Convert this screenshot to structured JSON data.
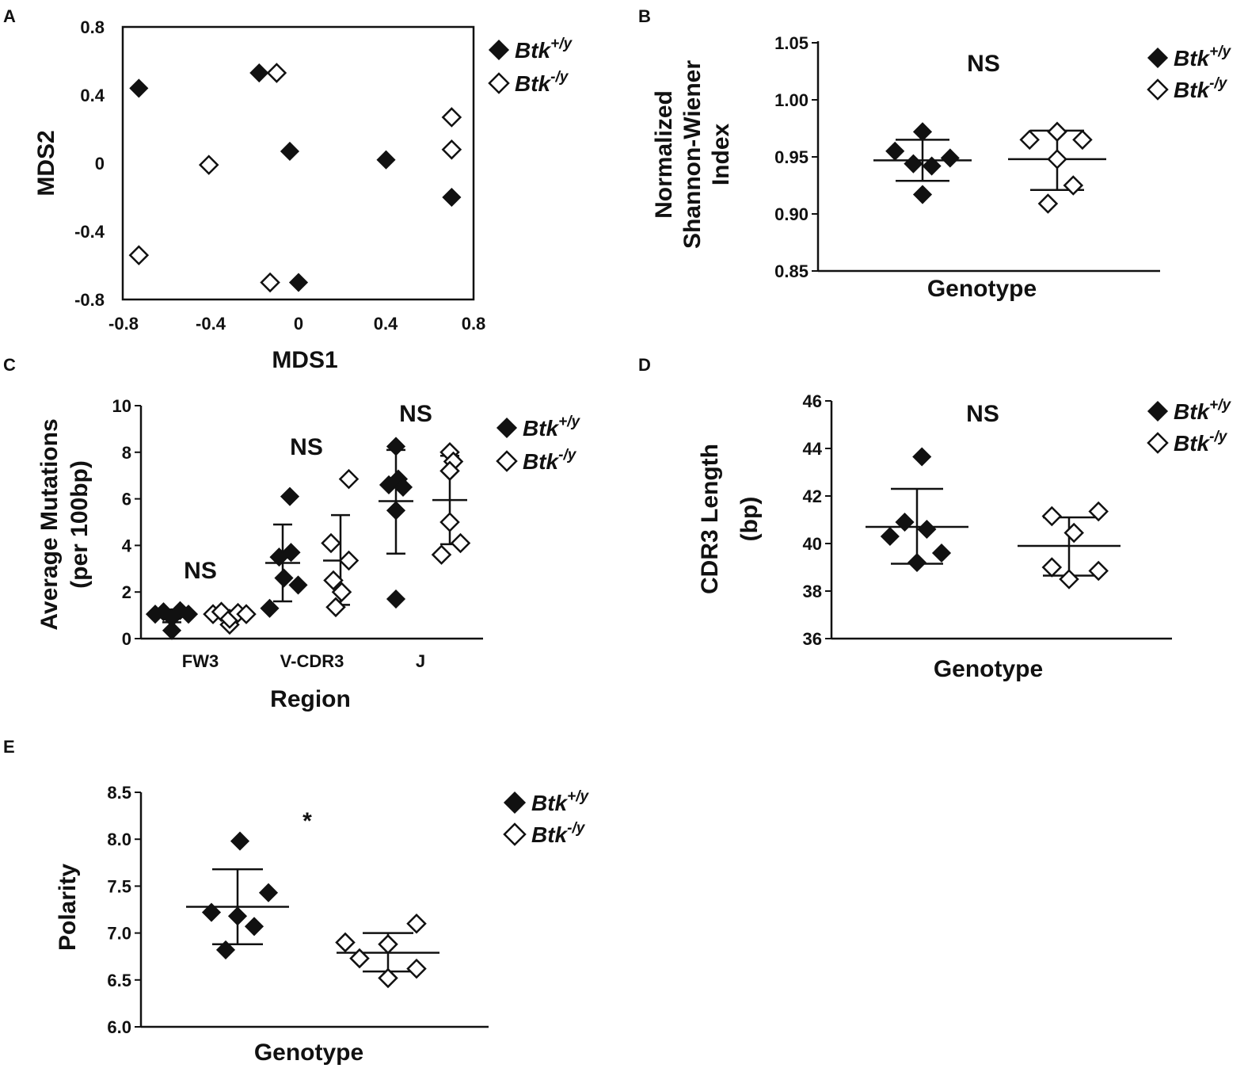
{
  "chart_data": [
    {
      "panel": "A",
      "type": "scatter",
      "xlabel": "MDS1",
      "ylabel": "MDS2",
      "xlim": [
        -0.8,
        0.8
      ],
      "ylim": [
        -0.8,
        0.8
      ],
      "xticks": [
        "-0.8",
        "-0.4",
        "0",
        "0.4",
        "0.8"
      ],
      "yticks": [
        "-0.8",
        "-0.4",
        "0",
        "0.4",
        "0.8"
      ],
      "legend": [
        "Btk+/y",
        "Btk-/y"
      ],
      "series": [
        {
          "name": "Btk+/y",
          "marker": "filled-diamond",
          "points": [
            [
              -0.73,
              0.44
            ],
            [
              -0.18,
              0.53
            ],
            [
              -0.04,
              0.07
            ],
            [
              0.4,
              0.02
            ],
            [
              0.7,
              -0.2
            ],
            [
              0.0,
              -0.7
            ]
          ]
        },
        {
          "name": "Btk-/y",
          "marker": "open-diamond",
          "points": [
            [
              -0.1,
              0.53
            ],
            [
              0.7,
              0.27
            ],
            [
              0.7,
              0.08
            ],
            [
              -0.41,
              -0.01
            ],
            [
              -0.73,
              -0.54
            ],
            [
              -0.13,
              -0.7
            ]
          ]
        }
      ]
    },
    {
      "panel": "B",
      "type": "scatter",
      "significance": "NS",
      "xlabel": "Genotype",
      "ylabel_lines": [
        "Normalized",
        "Shannon-Wiener",
        "Index"
      ],
      "ylim": [
        0.85,
        1.05
      ],
      "yticks": [
        "0.85",
        "0.90",
        "0.95",
        "1.00",
        "1.05"
      ],
      "legend": [
        "Btk+/y",
        "Btk-/y"
      ],
      "series": [
        {
          "name": "Btk+/y",
          "marker": "filled-diamond",
          "mean": 0.947,
          "err_low": 0.929,
          "err_high": 0.965,
          "points": [
            0.955,
            0.972,
            0.944,
            0.942,
            0.949,
            0.917
          ],
          "jitter": [
            -0.6,
            0.0,
            -0.2,
            0.2,
            0.6,
            0.0
          ]
        },
        {
          "name": "Btk-/y",
          "marker": "open-diamond",
          "mean": 0.948,
          "err_low": 0.921,
          "err_high": 0.973,
          "points": [
            0.965,
            0.972,
            0.965,
            0.948,
            0.925,
            0.909
          ],
          "jitter": [
            -0.6,
            0.0,
            0.55,
            0.0,
            0.35,
            -0.2
          ]
        }
      ]
    },
    {
      "panel": "C",
      "type": "scatter",
      "xlabel": "Region",
      "ylabel_lines": [
        "Average Mutations",
        "(per 100bp)"
      ],
      "ylim": [
        0,
        10
      ],
      "yticks": [
        "0",
        "2",
        "4",
        "6",
        "8",
        "10"
      ],
      "categories": [
        "FW3",
        "V-CDR3",
        "J"
      ],
      "significance": [
        "NS",
        "NS",
        "NS"
      ],
      "legend": [
        "Btk+/y",
        "Btk-/y"
      ],
      "groups": [
        {
          "category": "FW3",
          "series": "Btk+/y",
          "marker": "filled-diamond",
          "mean": 1.0,
          "err_low": 0.7,
          "err_high": 1.25,
          "points": [
            1.05,
            1.15,
            0.35,
            0.9,
            1.2,
            1.05
          ],
          "jitter": [
            -0.7,
            -0.35,
            0.0,
            0.0,
            0.35,
            0.7
          ]
        },
        {
          "category": "FW3",
          "series": "Btk-/y",
          "marker": "open-diamond",
          "mean": 1.0,
          "err_low": 0.8,
          "err_high": 1.2,
          "points": [
            1.05,
            1.15,
            0.6,
            0.85,
            1.1,
            1.05
          ],
          "jitter": [
            -0.7,
            -0.35,
            0.0,
            0.0,
            0.35,
            0.7
          ]
        },
        {
          "category": "V-CDR3",
          "series": "Btk+/y",
          "marker": "filled-diamond",
          "mean": 3.25,
          "err_low": 1.6,
          "err_high": 4.9,
          "points": [
            6.1,
            3.5,
            3.7,
            2.6,
            2.3,
            1.3
          ],
          "jitter": [
            0.3,
            -0.15,
            0.35,
            0.05,
            0.65,
            -0.55
          ]
        },
        {
          "category": "V-CDR3",
          "series": "Btk-/y",
          "marker": "open-diamond",
          "mean": 3.35,
          "err_low": 1.45,
          "err_high": 5.3,
          "points": [
            6.85,
            4.1,
            3.35,
            2.5,
            2.0,
            1.35
          ],
          "jitter": [
            0.35,
            -0.4,
            0.35,
            -0.3,
            0.05,
            -0.2
          ]
        },
        {
          "category": "J",
          "series": "Btk+/y",
          "marker": "filled-diamond",
          "mean": 5.9,
          "err_low": 3.65,
          "err_high": 8.1,
          "points": [
            8.25,
            6.85,
            6.6,
            6.5,
            5.5,
            1.7
          ],
          "jitter": [
            0.0,
            0.1,
            -0.3,
            0.3,
            0.0,
            0.0
          ]
        },
        {
          "category": "J",
          "series": "Btk-/y",
          "marker": "open-diamond",
          "mean": 5.95,
          "err_low": 4.05,
          "err_high": 7.85,
          "points": [
            8.0,
            7.6,
            7.2,
            5.0,
            4.1,
            3.6
          ],
          "jitter": [
            0.0,
            0.15,
            0.0,
            0.0,
            0.45,
            -0.35
          ]
        }
      ]
    },
    {
      "panel": "D",
      "type": "scatter",
      "significance": "NS",
      "xlabel": "Genotype",
      "ylabel_lines": [
        "CDR3 Length",
        "(bp)"
      ],
      "ylim": [
        36,
        46
      ],
      "yticks": [
        "36",
        "38",
        "40",
        "42",
        "44",
        "46"
      ],
      "legend": [
        "Btk+/y",
        "Btk-/y"
      ],
      "series": [
        {
          "name": "Btk+/y",
          "marker": "filled-diamond",
          "mean": 40.7,
          "err_low": 39.15,
          "err_high": 42.3,
          "points": [
            43.65,
            40.9,
            40.6,
            40.3,
            39.6,
            39.2
          ],
          "jitter": [
            0.1,
            -0.25,
            0.2,
            -0.55,
            0.5,
            0.0
          ]
        },
        {
          "name": "Btk-/y",
          "marker": "open-diamond",
          "mean": 39.9,
          "err_low": 38.65,
          "err_high": 41.1,
          "points": [
            41.35,
            41.15,
            40.45,
            39.0,
            38.85,
            38.5
          ],
          "jitter": [
            0.6,
            -0.35,
            0.1,
            -0.35,
            0.6,
            0.0
          ]
        }
      ]
    },
    {
      "panel": "E",
      "type": "scatter",
      "significance": "*",
      "xlabel": "Genotype",
      "ylabel": "Polarity",
      "ylim": [
        6.0,
        8.5
      ],
      "yticks": [
        "6.0",
        "6.5",
        "7.0",
        "7.5",
        "8.0",
        "8.5"
      ],
      "legend": [
        "Btk+/y",
        "Btk-/y"
      ],
      "series": [
        {
          "name": "Btk+/y",
          "marker": "filled-diamond",
          "mean": 7.28,
          "err_low": 6.88,
          "err_high": 7.68,
          "points": [
            7.98,
            7.43,
            7.22,
            7.18,
            7.07,
            6.82
          ],
          "jitter": [
            0.05,
            0.65,
            -0.55,
            0.0,
            0.35,
            -0.25
          ]
        },
        {
          "name": "Btk-/y",
          "marker": "open-diamond",
          "mean": 6.79,
          "err_low": 6.59,
          "err_high": 7.0,
          "points": [
            7.1,
            6.9,
            6.88,
            6.73,
            6.62,
            6.52
          ],
          "jitter": [
            0.6,
            -0.9,
            0.0,
            -0.6,
            0.6,
            0.0
          ]
        }
      ]
    }
  ],
  "panel_labels": [
    "A",
    "B",
    "C",
    "D",
    "E"
  ],
  "legend_base": "Btk",
  "legend_sup_wt": "+/y",
  "legend_sup_ko": "-/y"
}
